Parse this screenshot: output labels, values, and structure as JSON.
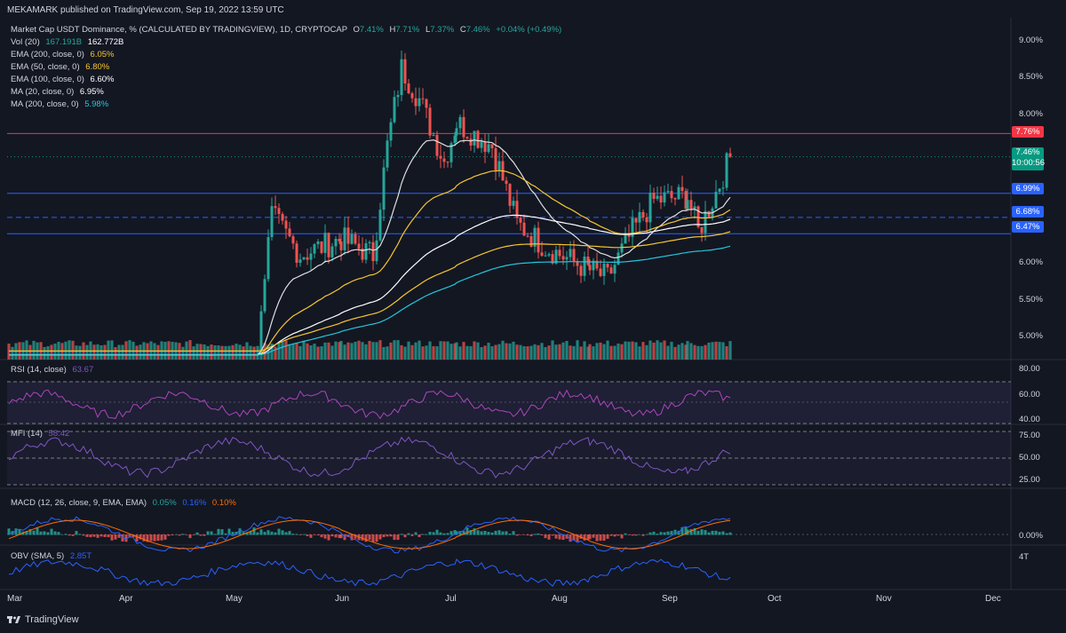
{
  "header": {
    "publisher": "MEKAMARK published on TradingView.com, Sep 19, 2022 13:59 UTC"
  },
  "main_legend": {
    "symbol": "Market Cap USDT Dominance, % (CALCULATED BY TRADINGVIEW), 1D, CRYPTOCAP",
    "o_label": "O",
    "o_value": "7.41%",
    "h_label": "H",
    "h_value": "7.71%",
    "l_label": "L",
    "l_value": "7.37%",
    "c_label": "C",
    "c_value": "7.46%",
    "change": "+0.04% (+0.49%)"
  },
  "indicators": [
    {
      "label": "Vol (20)",
      "value": "167.191B",
      "value2": "162.772B",
      "color": "#26a69a",
      "color2": "#ffffff"
    },
    {
      "label": "EMA (200, close, 0)",
      "value": "6.05%",
      "color": "#f7c531"
    },
    {
      "label": "EMA (50, close, 0)",
      "value": "6.80%",
      "color": "#f7c531"
    },
    {
      "label": "EMA (100, close, 0)",
      "value": "6.60%",
      "color": "#ffffff"
    },
    {
      "label": "MA (20, close, 0)",
      "value": "6.95%",
      "color": "#ffffff"
    },
    {
      "label": "MA (200, close, 0)",
      "value": "5.98%",
      "color": "#26c6da"
    }
  ],
  "price_axis": {
    "ticks": [
      "9.00%",
      "8.50%",
      "8.00%",
      "5.50%",
      "5.00%"
    ],
    "ticks_extra": [
      "6.00%"
    ],
    "labels": [
      {
        "text": "7.76%",
        "color": "#f23645"
      },
      {
        "text": "7.46%",
        "color": "#089981"
      },
      {
        "text": "10:00:56",
        "color": "#089981"
      },
      {
        "text": "6.99%",
        "color": "#2962ff"
      },
      {
        "text": "6.68%",
        "color": "#2962ff"
      },
      {
        "text": "6.47%",
        "color": "#2962ff"
      }
    ]
  },
  "rsi": {
    "label": "RSI (14, close)",
    "value": "63.67",
    "ticks": [
      "80.00",
      "60.00",
      "40.00"
    ]
  },
  "mfi": {
    "label": "MFI (14)",
    "value": "58.42",
    "ticks": [
      "75.00",
      "50.00",
      "25.00"
    ]
  },
  "macd": {
    "label": "MACD (12, 26, close, 9, EMA, EMA)",
    "v1": "0.05%",
    "v2": "0.16%",
    "v3": "0.10%",
    "ticks": [
      "0.00%"
    ]
  },
  "obv": {
    "label": "OBV (SMA, 5)",
    "value": "2.85T",
    "ticks": [
      "4T"
    ]
  },
  "time_axis": [
    "Mar",
    "Apr",
    "May",
    "Jun",
    "Jul",
    "Aug",
    "Sep",
    "Oct",
    "Nov",
    "Dec"
  ],
  "footer": {
    "brand": "TradingView"
  },
  "chart_data": {
    "type": "candlestick",
    "title": "Market Cap USDT Dominance, % (CALCULATED BY TRADINGVIEW), 1D, CRYPTOCAP",
    "ylim": [
      4.85,
      9.25
    ],
    "x_months": [
      "Mar",
      "Apr",
      "May",
      "Jun",
      "Jul",
      "Aug",
      "Sep",
      "Oct",
      "Nov",
      "Dec"
    ],
    "horizontal_levels": [
      {
        "value": 7.76,
        "color": "#f23645",
        "style": "solid"
      },
      {
        "value": 6.99,
        "color": "#2962ff",
        "style": "solid"
      },
      {
        "value": 6.68,
        "color": "#2962ff",
        "style": "dashed"
      },
      {
        "value": 6.47,
        "color": "#2962ff",
        "style": "solid"
      }
    ],
    "close_series_approx": [
      {
        "date": "May 9",
        "close": 5.6
      },
      {
        "date": "May 12",
        "close": 6.7
      },
      {
        "date": "May 20",
        "close": 6.2
      },
      {
        "date": "Jun 1",
        "close": 6.4
      },
      {
        "date": "Jun 10",
        "close": 6.2
      },
      {
        "date": "Jun 14",
        "close": 7.6
      },
      {
        "date": "Jun 18",
        "close": 8.6
      },
      {
        "date": "Jun 23",
        "close": 8.2
      },
      {
        "date": "Jun 30",
        "close": 7.4
      },
      {
        "date": "Jul 3",
        "close": 7.9
      },
      {
        "date": "Jul 13",
        "close": 7.6
      },
      {
        "date": "Jul 20",
        "close": 6.6
      },
      {
        "date": "Jul 28",
        "close": 6.3
      },
      {
        "date": "Aug 10",
        "close": 6.0
      },
      {
        "date": "Aug 15",
        "close": 5.9
      },
      {
        "date": "Aug 22",
        "close": 6.5
      },
      {
        "date": "Aug 28",
        "close": 6.9
      },
      {
        "date": "Sep 7",
        "close": 6.95
      },
      {
        "date": "Sep 10",
        "close": 6.5
      },
      {
        "date": "Sep 15",
        "close": 7.0
      },
      {
        "date": "Sep 19",
        "close": 7.46
      }
    ],
    "moving_averages": {
      "EMA200_last": 6.05,
      "EMA50_last": 6.8,
      "EMA100_last": 6.6,
      "MA20_last": 6.95,
      "MA200_last": 5.98
    },
    "rsi": {
      "ylim": [
        35,
        85
      ],
      "last": 63.67
    },
    "mfi": {
      "ylim": [
        18,
        82
      ],
      "last": 58.42
    },
    "macd": {
      "macd": 0.05,
      "signal": 0.16,
      "hist": 0.1
    },
    "obv": {
      "sma5_last": "2.85T"
    }
  }
}
